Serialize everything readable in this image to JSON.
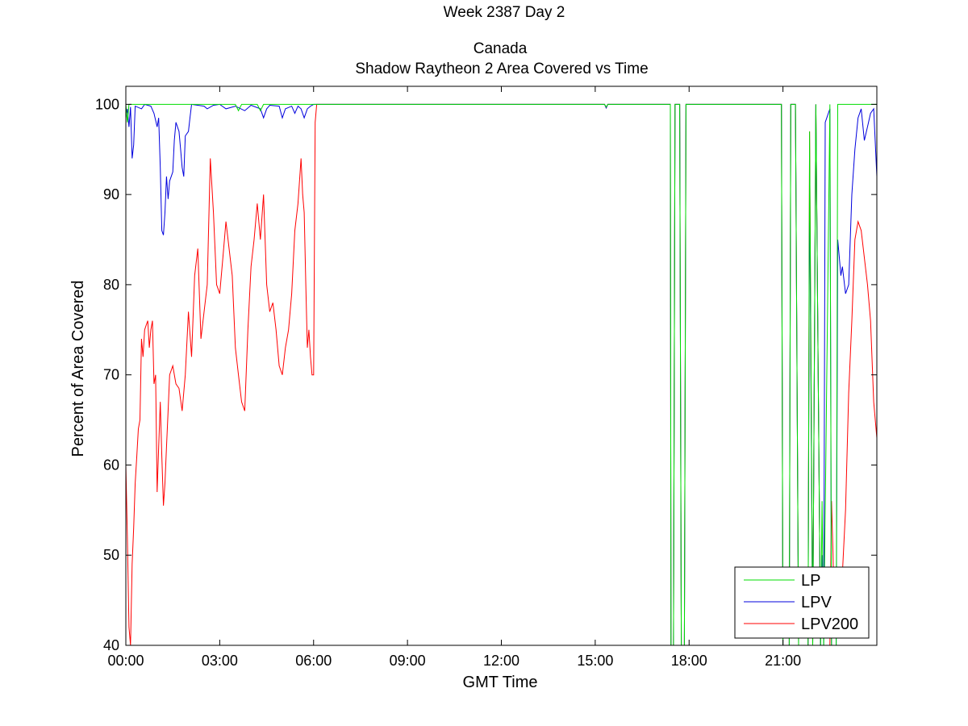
{
  "chart_data": {
    "type": "line",
    "title_lines": [
      "Week 2387 Day 2",
      "",
      "Canada",
      "Shadow Raytheon 2 Area Covered vs Time"
    ],
    "xlabel": "GMT Time",
    "ylabel": "Percent of Area Covered",
    "xlim": [
      0,
      24
    ],
    "ylim": [
      40,
      102
    ],
    "x_ticks": [
      0,
      3,
      6,
      9,
      12,
      15,
      18,
      21
    ],
    "x_tick_labels": [
      "00:00",
      "03:00",
      "06:00",
      "09:00",
      "12:00",
      "15:00",
      "18:00",
      "21:00"
    ],
    "y_ticks": [
      40,
      50,
      60,
      70,
      80,
      90,
      100
    ],
    "y_tick_labels": [
      "40",
      "50",
      "60",
      "70",
      "80",
      "90",
      "100"
    ],
    "grid": false,
    "legend_position": "bottom-right",
    "series": [
      {
        "name": "LP",
        "color": "#00dd00",
        "points": [
          [
            0,
            100
          ],
          [
            0.05,
            98
          ],
          [
            0.1,
            100
          ],
          [
            3.0,
            100
          ],
          [
            3.5,
            100
          ],
          [
            3.6,
            99.3
          ],
          [
            3.7,
            100
          ],
          [
            4.2,
            100
          ],
          [
            4.3,
            99.3
          ],
          [
            4.4,
            100
          ],
          [
            6.0,
            100
          ],
          [
            15.3,
            100
          ],
          [
            15.35,
            99.7
          ],
          [
            15.4,
            100
          ],
          [
            17.4,
            100
          ],
          [
            17.42,
            40
          ],
          [
            17.5,
            40
          ],
          [
            17.55,
            100
          ],
          [
            17.7,
            100
          ],
          [
            17.75,
            40
          ],
          [
            17.85,
            40
          ],
          [
            17.9,
            100
          ],
          [
            20.95,
            100
          ],
          [
            21.0,
            40
          ],
          [
            21.2,
            40
          ],
          [
            21.25,
            100
          ],
          [
            21.4,
            100
          ],
          [
            21.5,
            40
          ],
          [
            21.8,
            40
          ],
          [
            21.85,
            97
          ],
          [
            21.95,
            40
          ],
          [
            22.05,
            100
          ],
          [
            22.2,
            40
          ],
          [
            22.25,
            56
          ],
          [
            22.3,
            40
          ],
          [
            22.5,
            100
          ],
          [
            22.55,
            40
          ],
          [
            22.7,
            40
          ],
          [
            22.75,
            100
          ],
          [
            24,
            100
          ]
        ]
      },
      {
        "name": "LPV",
        "color": "#0000dd",
        "points": [
          [
            0,
            98.5
          ],
          [
            0.05,
            99.5
          ],
          [
            0.1,
            97.5
          ],
          [
            0.15,
            99.7
          ],
          [
            0.2,
            94
          ],
          [
            0.25,
            95.5
          ],
          [
            0.3,
            99.8
          ],
          [
            0.5,
            99.5
          ],
          [
            0.6,
            100
          ],
          [
            0.8,
            99.8
          ],
          [
            0.9,
            99
          ],
          [
            1.0,
            97.5
          ],
          [
            1.05,
            98.5
          ],
          [
            1.1,
            93
          ],
          [
            1.15,
            86
          ],
          [
            1.2,
            85.5
          ],
          [
            1.25,
            88
          ],
          [
            1.3,
            92
          ],
          [
            1.35,
            89.5
          ],
          [
            1.4,
            91.5
          ],
          [
            1.5,
            92.5
          ],
          [
            1.55,
            96
          ],
          [
            1.6,
            98
          ],
          [
            1.7,
            97
          ],
          [
            1.75,
            95
          ],
          [
            1.8,
            93
          ],
          [
            1.85,
            92
          ],
          [
            1.9,
            96.5
          ],
          [
            2.0,
            97
          ],
          [
            2.05,
            98.5
          ],
          [
            2.1,
            100
          ],
          [
            2.5,
            99.8
          ],
          [
            2.6,
            99.5
          ],
          [
            2.8,
            99.9
          ],
          [
            3.0,
            100
          ],
          [
            3.2,
            99.5
          ],
          [
            3.5,
            99.8
          ],
          [
            3.8,
            99.3
          ],
          [
            4.0,
            99.9
          ],
          [
            4.3,
            99.5
          ],
          [
            4.4,
            98.5
          ],
          [
            4.5,
            99.5
          ],
          [
            4.6,
            99.9
          ],
          [
            4.9,
            99.8
          ],
          [
            5.0,
            98.5
          ],
          [
            5.1,
            99.5
          ],
          [
            5.3,
            99.8
          ],
          [
            5.4,
            99
          ],
          [
            5.5,
            99.8
          ],
          [
            5.6,
            99.5
          ],
          [
            5.7,
            98.5
          ],
          [
            5.8,
            99.5
          ],
          [
            5.9,
            99.8
          ],
          [
            6.0,
            100
          ],
          [
            15.3,
            100
          ],
          [
            15.35,
            99.6
          ],
          [
            15.4,
            100
          ],
          [
            17.4,
            100
          ],
          [
            17.42,
            40
          ],
          [
            17.5,
            40
          ],
          [
            17.55,
            100
          ],
          [
            17.7,
            100
          ],
          [
            17.75,
            40
          ],
          [
            17.85,
            40
          ],
          [
            17.9,
            100
          ],
          [
            20.95,
            100
          ],
          [
            21.0,
            40
          ],
          [
            21.2,
            40
          ],
          [
            21.25,
            100
          ],
          [
            21.4,
            100
          ],
          [
            21.5,
            40
          ],
          [
            21.8,
            40
          ],
          [
            21.85,
            92
          ],
          [
            21.95,
            40
          ],
          [
            22.05,
            100
          ],
          [
            22.2,
            40
          ],
          [
            22.25,
            50
          ],
          [
            22.3,
            40
          ],
          [
            22.35,
            98
          ],
          [
            22.5,
            99.5
          ],
          [
            22.55,
            40
          ],
          [
            22.7,
            40
          ],
          [
            22.75,
            85
          ],
          [
            22.8,
            83
          ],
          [
            22.85,
            81
          ],
          [
            22.9,
            82
          ],
          [
            23.0,
            79
          ],
          [
            23.1,
            80
          ],
          [
            23.2,
            90
          ],
          [
            23.3,
            95
          ],
          [
            23.4,
            98.5
          ],
          [
            23.5,
            99.5
          ],
          [
            23.6,
            96
          ],
          [
            23.7,
            97.5
          ],
          [
            23.8,
            99
          ],
          [
            23.9,
            99.5
          ],
          [
            24,
            92
          ]
        ]
      },
      {
        "name": "LPV200",
        "color": "#ff0000",
        "points": [
          [
            0,
            60
          ],
          [
            0.05,
            52
          ],
          [
            0.1,
            42
          ],
          [
            0.15,
            40
          ],
          [
            0.2,
            49
          ],
          [
            0.25,
            53
          ],
          [
            0.3,
            58
          ],
          [
            0.35,
            61
          ],
          [
            0.4,
            64
          ],
          [
            0.45,
            65
          ],
          [
            0.5,
            74
          ],
          [
            0.55,
            72
          ],
          [
            0.6,
            75
          ],
          [
            0.65,
            75.5
          ],
          [
            0.7,
            76
          ],
          [
            0.75,
            73
          ],
          [
            0.8,
            75
          ],
          [
            0.85,
            76
          ],
          [
            0.9,
            69
          ],
          [
            0.95,
            70
          ],
          [
            1.0,
            57
          ],
          [
            1.05,
            62
          ],
          [
            1.1,
            67
          ],
          [
            1.15,
            61
          ],
          [
            1.2,
            55.5
          ],
          [
            1.25,
            58
          ],
          [
            1.3,
            62
          ],
          [
            1.35,
            66
          ],
          [
            1.4,
            70
          ],
          [
            1.5,
            71
          ],
          [
            1.6,
            69
          ],
          [
            1.7,
            68.5
          ],
          [
            1.8,
            66
          ],
          [
            1.9,
            70
          ],
          [
            2.0,
            77
          ],
          [
            2.1,
            72
          ],
          [
            2.2,
            81
          ],
          [
            2.3,
            84
          ],
          [
            2.4,
            74
          ],
          [
            2.5,
            77
          ],
          [
            2.6,
            80
          ],
          [
            2.7,
            94
          ],
          [
            2.8,
            88
          ],
          [
            2.9,
            80
          ],
          [
            3.0,
            79
          ],
          [
            3.1,
            83
          ],
          [
            3.2,
            87
          ],
          [
            3.3,
            84
          ],
          [
            3.4,
            81
          ],
          [
            3.5,
            73
          ],
          [
            3.6,
            70
          ],
          [
            3.7,
            67
          ],
          [
            3.8,
            66
          ],
          [
            3.9,
            75
          ],
          [
            4.0,
            82
          ],
          [
            4.1,
            85
          ],
          [
            4.2,
            89
          ],
          [
            4.3,
            85
          ],
          [
            4.4,
            90
          ],
          [
            4.5,
            80
          ],
          [
            4.6,
            77
          ],
          [
            4.7,
            78
          ],
          [
            4.8,
            75
          ],
          [
            4.9,
            71
          ],
          [
            5.0,
            70
          ],
          [
            5.1,
            73
          ],
          [
            5.2,
            75
          ],
          [
            5.3,
            79
          ],
          [
            5.4,
            86
          ],
          [
            5.5,
            89
          ],
          [
            5.6,
            94
          ],
          [
            5.65,
            90
          ],
          [
            5.7,
            88
          ],
          [
            5.75,
            80
          ],
          [
            5.8,
            73
          ],
          [
            5.85,
            75
          ],
          [
            5.9,
            72
          ],
          [
            5.95,
            70
          ],
          [
            6.0,
            70
          ],
          [
            6.05,
            98
          ],
          [
            6.1,
            100
          ],
          [
            15.3,
            100
          ],
          [
            15.35,
            99.6
          ],
          [
            15.4,
            100
          ],
          [
            17.4,
            100
          ],
          [
            17.42,
            40
          ],
          [
            17.5,
            40
          ],
          [
            17.55,
            100
          ],
          [
            17.7,
            100
          ],
          [
            17.75,
            40
          ],
          [
            17.85,
            40
          ],
          [
            17.9,
            100
          ],
          [
            20.95,
            100
          ],
          [
            21.0,
            40
          ],
          [
            21.2,
            40
          ],
          [
            21.25,
            100
          ],
          [
            21.4,
            100
          ],
          [
            21.5,
            40
          ],
          [
            21.8,
            40
          ],
          [
            21.85,
            97
          ],
          [
            21.95,
            40
          ],
          [
            22.05,
            100
          ],
          [
            22.2,
            40
          ],
          [
            22.5,
            40
          ],
          [
            22.55,
            56
          ],
          [
            22.6,
            50
          ],
          [
            22.65,
            41
          ],
          [
            22.7,
            47
          ],
          [
            22.8,
            42
          ],
          [
            22.9,
            48
          ],
          [
            23.0,
            55
          ],
          [
            23.1,
            68
          ],
          [
            23.2,
            76
          ],
          [
            23.3,
            85
          ],
          [
            23.4,
            87
          ],
          [
            23.5,
            86
          ],
          [
            23.6,
            83
          ],
          [
            23.7,
            80
          ],
          [
            23.8,
            76
          ],
          [
            23.9,
            67
          ],
          [
            24,
            63
          ]
        ]
      }
    ]
  }
}
